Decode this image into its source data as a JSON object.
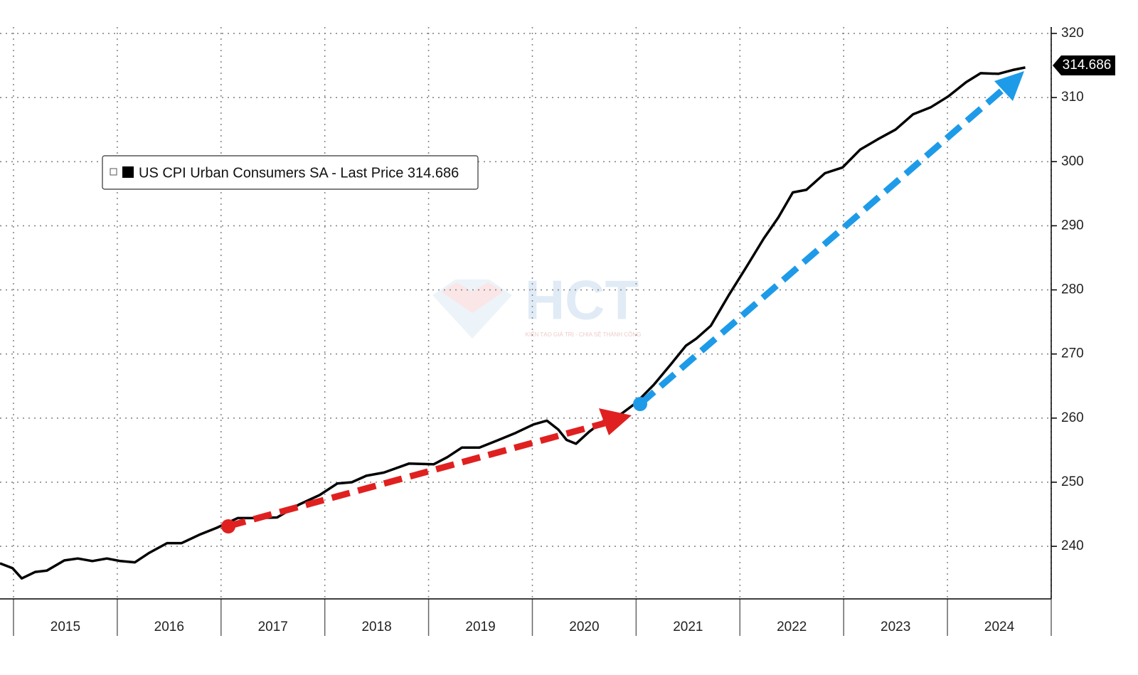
{
  "chart_data": {
    "type": "line",
    "series": [
      {
        "name": "US CPI Urban Consumers SA - Last Price 314.686",
        "color": "#000000",
        "x": [
          2014.87,
          2014.99,
          2015.08,
          2015.21,
          2015.32,
          2015.49,
          2015.62,
          2015.76,
          2015.9,
          2016.03,
          2016.17,
          2016.31,
          2016.48,
          2016.62,
          2016.79,
          2016.96,
          2017.16,
          2017.34,
          2017.54,
          2017.75,
          2017.95,
          2018.12,
          2018.26,
          2018.4,
          2018.57,
          2018.81,
          2019.05,
          2019.18,
          2019.32,
          2019.49,
          2019.66,
          2019.84,
          2020.01,
          2020.14,
          2020.25,
          2020.33,
          2020.42,
          2020.55,
          2020.69,
          2020.86,
          2021.0,
          2021.17,
          2021.34,
          2021.48,
          2021.58,
          2021.72,
          2021.89,
          2022.06,
          2022.23,
          2022.37,
          2022.51,
          2022.64,
          2022.82,
          2022.99,
          2023.16,
          2023.33,
          2023.5,
          2023.67,
          2023.84,
          2024.01,
          2024.18,
          2024.32,
          2024.49,
          2024.63,
          2024.75
        ],
        "values": [
          237.35,
          236.6,
          235.0,
          236.0,
          236.2,
          237.8,
          238.1,
          237.7,
          238.1,
          237.7,
          237.5,
          239.0,
          240.5,
          240.5,
          241.8,
          242.9,
          244.4,
          244.4,
          244.5,
          246.5,
          248.0,
          249.8,
          250.0,
          251.0,
          251.5,
          252.9,
          252.8,
          253.9,
          255.4,
          255.4,
          256.5,
          257.7,
          259.0,
          259.6,
          258.2,
          256.6,
          256.0,
          257.9,
          259.6,
          260.7,
          262.4,
          265.2,
          268.5,
          271.3,
          272.4,
          274.4,
          279.1,
          283.5,
          288.0,
          291.3,
          295.2,
          295.6,
          298.2,
          299.1,
          301.9,
          303.5,
          305.0,
          307.4,
          308.5,
          310.2,
          312.4,
          313.8,
          313.7,
          314.3,
          314.686
        ]
      }
    ],
    "last_value_label": "314.686",
    "xlim": [
      2014.87,
      2025.0
    ],
    "xticks": [
      {
        "value": 2015.5,
        "label": "2015"
      },
      {
        "value": 2016.5,
        "label": "2016"
      },
      {
        "value": 2017.5,
        "label": "2017"
      },
      {
        "value": 2018.5,
        "label": "2018"
      },
      {
        "value": 2019.5,
        "label": "2019"
      },
      {
        "value": 2020.5,
        "label": "2020"
      },
      {
        "value": 2021.5,
        "label": "2021"
      },
      {
        "value": 2022.5,
        "label": "2022"
      },
      {
        "value": 2023.5,
        "label": "2023"
      },
      {
        "value": 2024.5,
        "label": "2024"
      }
    ],
    "xgrid": [
      2015,
      2016,
      2017,
      2018,
      2019,
      2020,
      2021,
      2022,
      2023,
      2024,
      2025
    ],
    "ylim": [
      231.8,
      321.0
    ],
    "yticks": [
      240,
      250,
      260,
      270,
      280,
      290,
      300,
      310,
      320
    ],
    "grid": true,
    "watermark": "HCT",
    "watermark_tagline": "KIẾN TẠO GIÁ TRỊ - CHIA SẺ THÀNH CÔNG"
  }
}
